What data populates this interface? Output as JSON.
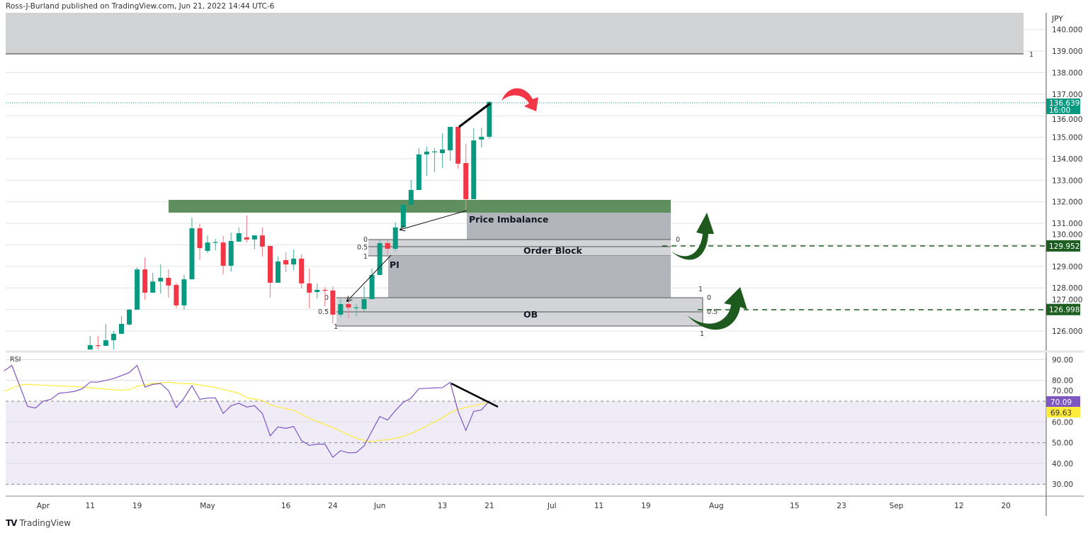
{
  "header": {
    "published": "Ross-J-Burland published on TradingView.com, Jun 21, 2022 14:44 UTC-6"
  },
  "logo": {
    "text": "TradingView"
  },
  "chart_data": {
    "type": "candlestick",
    "symbol_currency": "JPY",
    "first_bar_index": 6,
    "ohlc": [
      [
        125.14,
        125.77,
        125.14,
        125.34
      ],
      [
        125.34,
        125.77,
        125.14,
        125.32
      ],
      [
        125.31,
        126.33,
        125.31,
        125.57
      ],
      [
        125.57,
        126.0,
        125.14,
        125.87
      ],
      [
        125.87,
        126.69,
        125.87,
        126.33
      ],
      [
        126.3,
        127.02,
        126.26,
        126.99
      ],
      [
        126.99,
        128.96,
        126.99,
        128.86
      ],
      [
        128.86,
        129.42,
        127.45,
        127.78
      ],
      [
        127.78,
        128.7,
        127.78,
        128.3
      ],
      [
        128.3,
        129.09,
        127.74,
        128.47
      ],
      [
        128.47,
        128.86,
        127.55,
        128.11
      ],
      [
        128.14,
        128.24,
        127.05,
        127.19
      ],
      [
        127.19,
        128.6,
        126.99,
        128.4
      ],
      [
        128.4,
        131.27,
        128.4,
        130.77
      ],
      [
        130.77,
        130.97,
        129.32,
        129.85
      ],
      [
        129.72,
        130.44,
        129.62,
        130.11
      ],
      [
        130.11,
        130.28,
        129.75,
        130.13
      ],
      [
        130.11,
        130.41,
        128.63,
        129.03
      ],
      [
        129.03,
        130.58,
        128.76,
        130.18
      ],
      [
        130.15,
        130.81,
        130.15,
        130.54
      ],
      [
        130.35,
        131.37,
        130.11,
        130.25
      ],
      [
        130.25,
        130.44,
        129.79,
        130.44
      ],
      [
        130.44,
        130.81,
        129.46,
        129.92
      ],
      [
        129.95,
        129.95,
        127.55,
        128.24
      ],
      [
        128.24,
        129.46,
        128.24,
        129.23
      ],
      [
        129.29,
        129.65,
        128.73,
        129.09
      ],
      [
        129.09,
        129.79,
        128.83,
        129.36
      ],
      [
        129.36,
        129.56,
        127.97,
        128.21
      ],
      [
        128.21,
        128.9,
        127.05,
        127.78
      ],
      [
        127.81,
        128.21,
        127.51,
        127.91
      ],
      [
        127.91,
        128.04,
        127.15,
        127.9
      ],
      [
        127.88,
        128.07,
        126.36,
        126.76
      ],
      [
        126.76,
        127.48,
        126.66,
        127.25
      ],
      [
        127.25,
        127.42,
        126.59,
        127.09
      ],
      [
        127.09,
        127.25,
        126.69,
        127.1
      ],
      [
        127.02,
        128.07,
        126.92,
        127.48
      ],
      [
        127.48,
        128.9,
        127.48,
        128.6
      ],
      [
        128.6,
        130.21,
        128.6,
        130.08
      ],
      [
        130.08,
        130.21,
        129.56,
        129.82
      ],
      [
        129.82,
        131.04,
        129.69,
        130.81
      ],
      [
        130.81,
        131.86,
        130.81,
        131.86
      ],
      [
        131.86,
        133.01,
        131.86,
        132.55
      ],
      [
        132.55,
        134.49,
        132.55,
        134.2
      ],
      [
        134.2,
        134.56,
        133.21,
        134.33
      ],
      [
        134.33,
        134.49,
        133.37,
        134.34
      ],
      [
        134.26,
        135.18,
        133.57,
        134.43
      ],
      [
        134.39,
        135.48,
        133.9,
        135.48
      ],
      [
        135.48,
        135.48,
        133.54,
        133.77
      ],
      [
        133.8,
        134.69,
        131.56,
        132.12
      ],
      [
        132.12,
        135.41,
        132.12,
        134.85
      ],
      [
        134.89,
        135.45,
        134.53,
        135.02
      ],
      [
        135.02,
        136.66,
        134.92,
        136.64
      ]
    ],
    "price_ticks": [
      "126.000",
      "127.000",
      "128.000",
      "129.000",
      "130.000",
      "131.000",
      "132.000",
      "133.000",
      "134.000",
      "135.000",
      "136.000",
      "137.000",
      "138.000",
      "139.000",
      "140.000"
    ],
    "x_ticks": [
      {
        "label": "Apr",
        "idx": 0
      },
      {
        "label": "11",
        "idx": 6
      },
      {
        "label": "19",
        "idx": 12
      },
      {
        "label": "May",
        "idx": 21
      },
      {
        "label": "16",
        "idx": 31
      },
      {
        "label": "24",
        "idx": 37
      },
      {
        "label": "Jun",
        "idx": 43
      },
      {
        "label": "13",
        "idx": 51
      },
      {
        "label": "21",
        "idx": 57
      },
      {
        "label": "Jul",
        "idx": 65
      },
      {
        "label": "11",
        "idx": 71
      },
      {
        "label": "19",
        "idx": 77
      },
      {
        "label": "Aug",
        "idx": 86
      },
      {
        "label": "15",
        "idx": 96
      },
      {
        "label": "23",
        "idx": 102
      },
      {
        "label": "Sep",
        "idx": 109
      },
      {
        "label": "12",
        "idx": 117
      },
      {
        "label": "20",
        "idx": 123
      }
    ],
    "last_price": {
      "value": "136.639",
      "countdown": "16:00",
      "color": "#089981"
    },
    "level_badges": [
      {
        "value": "129.952",
        "price": 129.952
      },
      {
        "value": "126.998",
        "price": 126.998
      }
    ],
    "rsi": {
      "title": "RSI",
      "first_idx": -5,
      "values": [
        84.6,
        87.2,
        77.4,
        67.5,
        66.7,
        70.0,
        70.9,
        73.8,
        74.2,
        74.7,
        76.0,
        79.2,
        79.2,
        80.0,
        80.9,
        82.3,
        83.8,
        87.2,
        76.8,
        78.1,
        78.5,
        75.1,
        66.9,
        71.5,
        77.5,
        70.9,
        71.5,
        71.6,
        64.1,
        67.8,
        69.0,
        67.2,
        67.8,
        64.1,
        53.3,
        57.6,
        56.9,
        57.8,
        51.0,
        48.7,
        49.3,
        49.3,
        43.0,
        46.2,
        45.1,
        45.3,
        48.5,
        55.6,
        62.6,
        60.9,
        65.5,
        69.4,
        71.5,
        76.0,
        76.2,
        76.4,
        76.5,
        79.1,
        65.2,
        55.9,
        65.1,
        65.8,
        70.09
      ],
      "ma_points": [
        [
          -5,
          74.7
        ],
        [
          -3,
          77.7
        ],
        [
          -2,
          78.1
        ],
        [
          0,
          77.7
        ],
        [
          3,
          77.2
        ],
        [
          5,
          76.8
        ],
        [
          8,
          75.8
        ],
        [
          10,
          75.2
        ],
        [
          11,
          75.6
        ],
        [
          12,
          77.2
        ],
        [
          14,
          78.5
        ],
        [
          16,
          79.1
        ],
        [
          18,
          78.4
        ],
        [
          19,
          78.4
        ],
        [
          22,
          76.6
        ],
        [
          25,
          73.8
        ],
        [
          26,
          71.7
        ],
        [
          28,
          70.3
        ],
        [
          29,
          68.3
        ],
        [
          30,
          67.2
        ],
        [
          32,
          65.6
        ],
        [
          34,
          61.8
        ],
        [
          37,
          57.3
        ],
        [
          40,
          52.1
        ],
        [
          42,
          50.4
        ],
        [
          43,
          51.2
        ],
        [
          44,
          51.4
        ],
        [
          46,
          53.0
        ],
        [
          47,
          54.4
        ],
        [
          49,
          58.1
        ],
        [
          51,
          62.0
        ],
        [
          52,
          64.4
        ],
        [
          53,
          66.0
        ],
        [
          54,
          67.0
        ],
        [
          55,
          67.8
        ],
        [
          56,
          68.6
        ],
        [
          57,
          69.63
        ]
      ],
      "ticks": [
        "30.00",
        "40.00",
        "50.00",
        "60.00",
        "70.00",
        "80.00",
        "90.00"
      ],
      "last_rsi": "70.09",
      "last_ma": "69.63",
      "rsi_color": "#7e57c2",
      "ma_color": "#ffeb3b"
    },
    "annotations": {
      "price_imbalance": "Price Imbalance",
      "order_block": "Order Block",
      "ob": "OB",
      "pi": "PI",
      "fib_0": "0",
      "fib_05": "0.5",
      "fib_1": "1",
      "top_zone_label": "1"
    }
  }
}
